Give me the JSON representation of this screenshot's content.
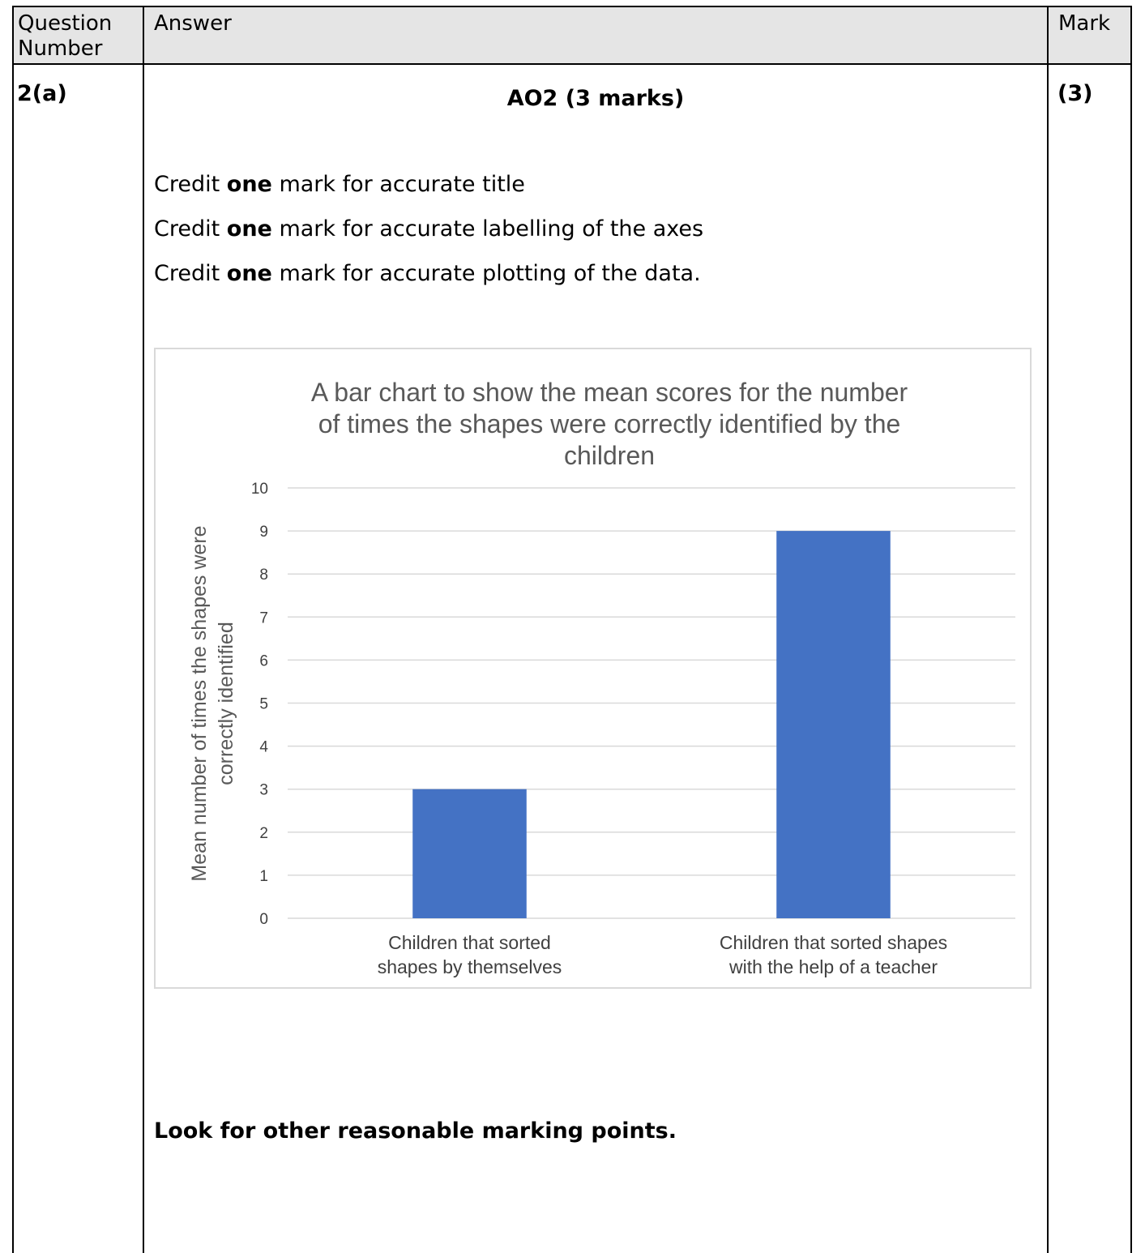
{
  "header": {
    "question_number_line1": "Question",
    "question_number_line2": "Number",
    "answer": "Answer",
    "mark": "Mark"
  },
  "row": {
    "question": "2(a)",
    "ao_title": "AO2 (3 marks)",
    "mark_value": "(3)",
    "credits": [
      {
        "prefix": "Credit ",
        "bold": "one",
        "suffix": " mark for accurate title"
      },
      {
        "prefix": "Credit ",
        "bold": "one",
        "suffix": " mark for accurate labelling of the axes"
      },
      {
        "prefix": "Credit ",
        "bold": "one",
        "suffix": " mark for accurate plotting of the data."
      }
    ],
    "footer_note": "Look for other reasonable marking points."
  },
  "chart_data": {
    "type": "bar",
    "title_lines": [
      "A bar chart to show the mean scores for the number",
      "of times the shapes were correctly identified by the",
      "children"
    ],
    "ylabel_lines": [
      "Mean number of times the shapes were",
      "correctly identified"
    ],
    "xlabel": "",
    "categories": [
      [
        "Children that sorted",
        "shapes by themselves"
      ],
      [
        "Children that sorted shapes",
        "with the help of a teacher"
      ]
    ],
    "values": [
      3,
      9
    ],
    "ylim": [
      0,
      10
    ],
    "yticks": [
      "0",
      "1",
      "2",
      "3",
      "4",
      "5",
      "6",
      "7",
      "8",
      "9",
      "10"
    ],
    "grid": true,
    "bar_color": "#4472c4",
    "grid_color": "#d9d9d9"
  }
}
